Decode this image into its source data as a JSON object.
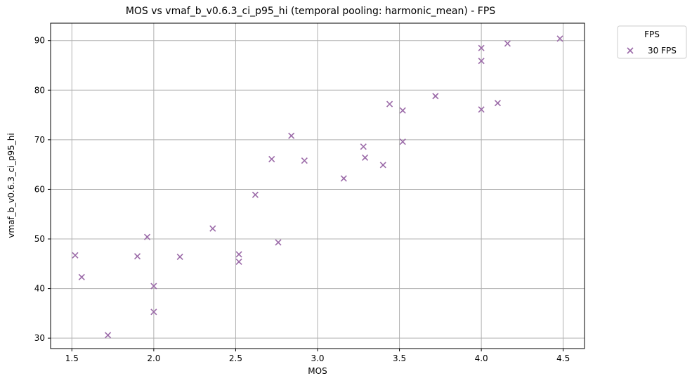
{
  "chart_data": {
    "type": "scatter",
    "title": "MOS vs vmaf_b_v0.6.3_ci_p95_hi (temporal pooling: harmonic_mean) - FPS",
    "xlabel": "MOS",
    "ylabel": "vmaf_b_v0.6.3_ci_p95_hi",
    "xlim": [
      1.37,
      4.63
    ],
    "ylim": [
      27.9,
      93.5
    ],
    "xticks": [
      1.5,
      2.0,
      2.5,
      3.0,
      3.5,
      4.0,
      4.5
    ],
    "xtick_labels": [
      "1.5",
      "2.0",
      "2.5",
      "3.0",
      "3.5",
      "4.0",
      "4.5"
    ],
    "yticks": [
      30,
      40,
      50,
      60,
      70,
      80,
      90
    ],
    "ytick_labels": [
      "30",
      "40",
      "50",
      "60",
      "70",
      "80",
      "90"
    ],
    "grid": true,
    "legend": {
      "title": "FPS",
      "placement": "outside-top-right"
    },
    "series": [
      {
        "name": "30 FPS",
        "marker": "x",
        "color": "#9b6aa8",
        "points": [
          [
            1.52,
            46.7
          ],
          [
            1.56,
            42.3
          ],
          [
            1.72,
            30.6
          ],
          [
            1.9,
            46.5
          ],
          [
            1.96,
            50.4
          ],
          [
            2.0,
            40.5
          ],
          [
            2.0,
            35.3
          ],
          [
            2.16,
            46.4
          ],
          [
            2.36,
            52.1
          ],
          [
            2.52,
            46.9
          ],
          [
            2.52,
            45.4
          ],
          [
            2.62,
            58.9
          ],
          [
            2.72,
            66.1
          ],
          [
            2.76,
            49.3
          ],
          [
            2.84,
            70.8
          ],
          [
            2.92,
            65.8
          ],
          [
            3.16,
            62.2
          ],
          [
            3.28,
            68.6
          ],
          [
            3.29,
            66.4
          ],
          [
            3.4,
            64.9
          ],
          [
            3.44,
            77.2
          ],
          [
            3.52,
            75.9
          ],
          [
            3.52,
            69.6
          ],
          [
            3.72,
            78.8
          ],
          [
            4.0,
            88.5
          ],
          [
            4.0,
            85.9
          ],
          [
            4.0,
            76.1
          ],
          [
            4.1,
            77.4
          ],
          [
            4.16,
            89.4
          ],
          [
            4.48,
            90.4
          ]
        ]
      }
    ]
  }
}
